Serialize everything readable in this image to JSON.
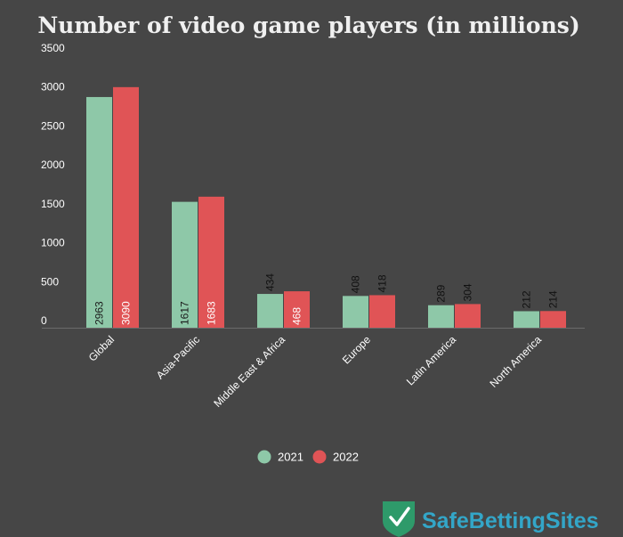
{
  "chart_data": {
    "type": "bar",
    "title": "Number of video game players (in millions)",
    "xlabel": "",
    "ylabel": "",
    "categories": [
      "Global",
      "Asia-Pacific",
      "Middle East & Africa",
      "Europe",
      "Latin America",
      "North America"
    ],
    "series": [
      {
        "name": "2021",
        "values": [
          2963,
          1617,
          434,
          408,
          289,
          212
        ],
        "color": "#8ec8a8"
      },
      {
        "name": "2022",
        "values": [
          3090,
          1683,
          468,
          418,
          304,
          214
        ],
        "color": "#e05456"
      }
    ],
    "ylim": [
      0,
      3500
    ],
    "yticks": [
      0,
      500,
      1000,
      1500,
      2000,
      2500,
      3000,
      3500
    ],
    "grid": false,
    "legend_position": "bottom-center"
  },
  "brand": {
    "logo_text": "SafeBettingSites",
    "shield_color": "#2e9a6a",
    "text_color": "#33a6c8"
  },
  "colors": {
    "background": "#464646",
    "axis_text": "#ffffff",
    "title_text": "#f0f0f0"
  }
}
